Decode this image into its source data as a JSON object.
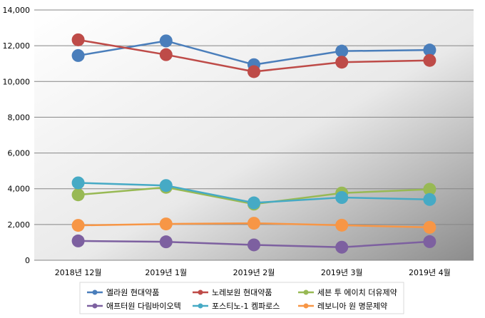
{
  "chart_data": {
    "type": "line",
    "categories": [
      "2018년 12월",
      "2019년 1월",
      "2019년 2월",
      "2019년 3월",
      "2019년 4월"
    ],
    "ylim": [
      0,
      14000
    ],
    "yticks": [
      "0",
      "2,000",
      "4,000",
      "6,000",
      "8,000",
      "10,000",
      "12,000",
      "14,000"
    ],
    "ytick_values": [
      0,
      2000,
      4000,
      6000,
      8000,
      10000,
      12000,
      14000
    ],
    "grid": true,
    "legend_placement": "bottom",
    "series": [
      {
        "name": "엘라원 현대약품",
        "color": "#4a7ebb",
        "values": [
          11450,
          12270,
          10940,
          11700,
          11760
        ]
      },
      {
        "name": "노레보원 현대약품",
        "color": "#be4b48",
        "values": [
          12330,
          11500,
          10550,
          11080,
          11180
        ]
      },
      {
        "name": "세븐 투 에이치 더유제약",
        "color": "#98b954",
        "values": [
          3660,
          4080,
          3140,
          3760,
          3970
        ]
      },
      {
        "name": "애프터원 다림바이오텍",
        "color": "#7d60a0",
        "values": [
          1080,
          1030,
          860,
          730,
          1040
        ]
      },
      {
        "name": "포스티노-1 켐파로스",
        "color": "#46aac5",
        "values": [
          4330,
          4180,
          3210,
          3510,
          3400
        ]
      },
      {
        "name": "레보니아 원 명문제약",
        "color": "#f79646",
        "values": [
          1950,
          2030,
          2070,
          1960,
          1840
        ]
      }
    ]
  }
}
